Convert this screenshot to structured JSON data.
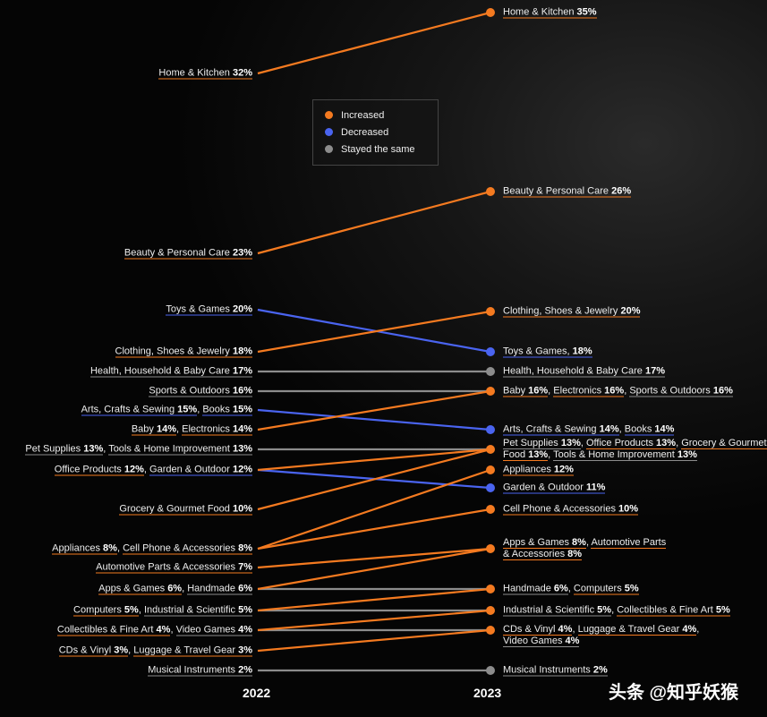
{
  "colors": {
    "increased": "#f47a20",
    "decreased": "#4a64f0",
    "same": "#8c8c8c"
  },
  "legend": {
    "items": [
      {
        "label": "Increased",
        "status": "inc"
      },
      {
        "label": "Decreased",
        "status": "dec"
      },
      {
        "label": "Stayed the same",
        "status": "same"
      }
    ]
  },
  "watermark": "头条 @知乎妖猴",
  "chart_data": {
    "type": "slope",
    "x_labels": [
      "2022",
      "2023"
    ],
    "left_groups": [
      [
        {
          "name": "Home & Kitchen",
          "value": "32%",
          "status": "inc"
        }
      ],
      [
        {
          "name": "Beauty & Personal Care",
          "value": "23%",
          "status": "inc"
        }
      ],
      [
        {
          "name": "Toys & Games",
          "value": "20%",
          "status": "dec"
        }
      ],
      [
        {
          "name": "Clothing, Shoes & Jewelry",
          "value": "18%",
          "status": "inc"
        }
      ],
      [
        {
          "name": "Health, Household & Baby Care",
          "value": "17%",
          "status": "same"
        }
      ],
      [
        {
          "name": "Sports & Outdoors",
          "value": "16%",
          "status": "same"
        }
      ],
      [
        {
          "name": "Arts, Crafts & Sewing",
          "value": "15%",
          "status": "dec"
        },
        {
          "name": "Books",
          "value": "15%",
          "status": "dec"
        }
      ],
      [
        {
          "name": "Baby",
          "value": "14%",
          "status": "inc"
        },
        {
          "name": "Electronics",
          "value": "14%",
          "status": "inc"
        }
      ],
      [
        {
          "name": "Pet Supplies",
          "value": "13%",
          "status": "same"
        },
        {
          "name": "Tools & Home Improvement",
          "value": "13%",
          "status": "same"
        }
      ],
      [
        {
          "name": "Office Products",
          "value": "12%",
          "status": "inc"
        },
        {
          "name": "Garden & Outdoor",
          "value": "12%",
          "status": "dec"
        }
      ],
      [
        {
          "name": "Grocery & Gourmet Food",
          "value": "10%",
          "status": "inc"
        }
      ],
      [
        {
          "name": "Appliances",
          "value": "8%",
          "status": "inc"
        },
        {
          "name": "Cell Phone & Accessories",
          "value": "8%",
          "status": "inc"
        }
      ],
      [
        {
          "name": "Automotive Parts & Accessories",
          "value": "7%",
          "status": "inc"
        }
      ],
      [
        {
          "name": "Apps & Games",
          "value": "6%",
          "status": "inc"
        },
        {
          "name": "Handmade",
          "value": "6%",
          "status": "same"
        }
      ],
      [
        {
          "name": "Computers",
          "value": "5%",
          "status": "inc"
        },
        {
          "name": "Industrial & Scientific",
          "value": "5%",
          "status": "same"
        }
      ],
      [
        {
          "name": "Collectibles & Fine Art",
          "value": "4%",
          "status": "inc"
        },
        {
          "name": "Video Games",
          "value": "4%",
          "status": "same"
        }
      ],
      [
        {
          "name": "CDs & Vinyl",
          "value": "3%",
          "status": "inc"
        },
        {
          "name": "Luggage & Travel Gear",
          "value": "3%",
          "status": "inc"
        }
      ],
      [
        {
          "name": "Musical Instruments",
          "value": "2%",
          "status": "same"
        }
      ]
    ],
    "right_groups": [
      {
        "dot": "inc",
        "items": [
          {
            "name": "Home & Kitchen",
            "value": "35%",
            "status": "inc"
          }
        ]
      },
      {
        "dot": "inc",
        "items": [
          {
            "name": "Beauty & Personal Care",
            "value": "26%",
            "status": "inc"
          }
        ]
      },
      {
        "dot": "inc",
        "items": [
          {
            "name": "Clothing, Shoes & Jewelry",
            "value": "20%",
            "status": "inc"
          }
        ]
      },
      {
        "dot": "dec",
        "items": [
          {
            "name": "Toys & Games,",
            "value": "18%",
            "status": "dec"
          }
        ]
      },
      {
        "dot": "same",
        "items": [
          {
            "name": "Health, Household & Baby Care",
            "value": "17%",
            "status": "same"
          }
        ]
      },
      {
        "dot": "inc",
        "items": [
          {
            "name": "Baby",
            "value": "16%",
            "status": "inc"
          },
          {
            "name": "Electronics",
            "value": "16%",
            "status": "inc"
          },
          {
            "name": "Sports & Outdoors",
            "value": "16%",
            "status": "same"
          }
        ]
      },
      {
        "dot": "dec",
        "items": [
          {
            "name": "Arts, Crafts & Sewing",
            "value": "14%",
            "status": "dec"
          },
          {
            "name": "Books",
            "value": "14%",
            "status": "dec"
          }
        ]
      },
      {
        "dot": "inc",
        "items": [
          {
            "name": "Pet Supplies",
            "value": "13%",
            "status": "same"
          },
          {
            "name": "Office Products",
            "value": "13%",
            "status": "inc"
          },
          {
            "name": "Grocery & Gourmet Food",
            "value": "13%",
            "status": "inc"
          },
          {
            "name": "Tools & Home Improvement",
            "value": "13%",
            "status": "same"
          }
        ]
      },
      {
        "dot": "inc",
        "items": [
          {
            "name": "Appliances",
            "value": "12%",
            "status": "inc"
          }
        ]
      },
      {
        "dot": "dec",
        "items": [
          {
            "name": "Garden & Outdoor",
            "value": "11%",
            "status": "dec"
          }
        ]
      },
      {
        "dot": "inc",
        "items": [
          {
            "name": "Cell Phone & Accessories",
            "value": "10%",
            "status": "inc"
          }
        ]
      },
      {
        "dot": "inc",
        "items": [
          {
            "name": "Apps & Games",
            "value": "8%",
            "status": "inc"
          },
          {
            "name": "Automotive Parts & Accessories",
            "value": "8%",
            "status": "inc"
          }
        ]
      },
      {
        "dot": "inc",
        "items": [
          {
            "name": "Handmade",
            "value": "6%",
            "status": "same"
          },
          {
            "name": "Computers",
            "value": "5%",
            "status": "inc"
          }
        ]
      },
      {
        "dot": "inc",
        "items": [
          {
            "name": "Industrial & Scientific",
            "value": "5%",
            "status": "same"
          },
          {
            "name": "Collectibles & Fine Art",
            "value": "5%",
            "status": "inc"
          }
        ]
      },
      {
        "dot": "inc",
        "items": [
          {
            "name": "CDs & Vinyl",
            "value": "4%",
            "status": "inc"
          },
          {
            "name": "Luggage & Travel Gear",
            "value": "4%",
            "status": "inc"
          },
          {
            "name": "Video Games",
            "value": "4%",
            "status": "same"
          }
        ]
      },
      {
        "dot": "same",
        "items": [
          {
            "name": "Musical Instruments",
            "value": "2%",
            "status": "same"
          }
        ]
      }
    ]
  }
}
